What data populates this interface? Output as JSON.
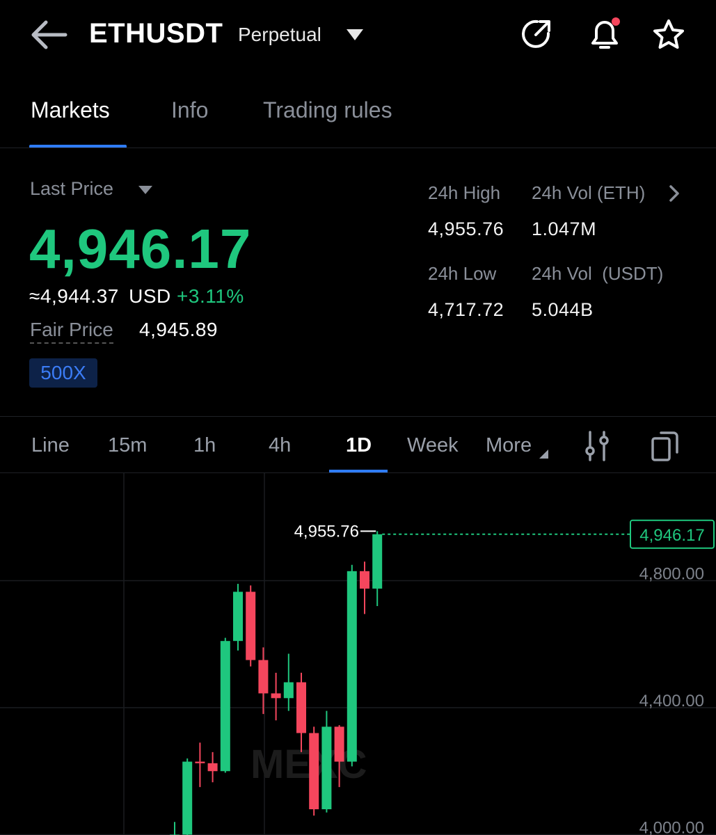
{
  "header": {
    "pair": "ETHUSDT",
    "contract_type": "Perpetual",
    "icons": [
      "back-arrow-icon",
      "chevron-down-icon",
      "share-icon",
      "bell-icon",
      "star-icon"
    ]
  },
  "tabs": [
    {
      "label": "Markets",
      "active": true
    },
    {
      "label": "Info",
      "active": false
    },
    {
      "label": "Trading rules",
      "active": false
    }
  ],
  "price": {
    "selector_label": "Last Price",
    "last_price": "4,946.17",
    "usd_equiv": "≈4,944.37",
    "usd_unit": "USD",
    "change_pct": "+3.11%",
    "fair_price_label": "Fair Price",
    "fair_price": "4,945.89",
    "leverage_badge": "500X"
  },
  "stats": {
    "high_label": "24h High",
    "high_value": "4,955.76",
    "vol_eth_label": "24h Vol (ETH)",
    "vol_eth_value": "1.047M",
    "low_label": "24h Low",
    "low_value": "4,717.72",
    "vol_usdt_label": "24h Vol  (USDT)",
    "vol_usdt_value": "5.044B"
  },
  "intervals": {
    "items": [
      "Line",
      "15m",
      "1h",
      "4h",
      "1D",
      "Week",
      "More"
    ],
    "active": "1D",
    "icons": [
      "indicator-settings-icon",
      "rotate-screen-icon"
    ]
  },
  "colors": {
    "up": "#1fc77e",
    "down": "#f5465d",
    "accent": "#2f7cf6"
  },
  "chart_data": {
    "type": "candlestick",
    "y_axis_ticks": [
      "4,800.00",
      "4,400.00",
      "4,000.00"
    ],
    "y_axis_values": [
      4800,
      4400,
      4000
    ],
    "last_price_label": "4,946.17",
    "last_price": 4946.17,
    "high_marker_label": "4,955.76",
    "high_marker": 4955.76,
    "watermark": "MEXC",
    "candles": [
      {
        "o": 3990,
        "h": 4040,
        "l": 3955,
        "c": 4000
      },
      {
        "o": 4000,
        "h": 4240,
        "l": 3990,
        "c": 4230
      },
      {
        "o": 4230,
        "h": 4290,
        "l": 4150,
        "c": 4225
      },
      {
        "o": 4225,
        "h": 4260,
        "l": 4165,
        "c": 4200
      },
      {
        "o": 4200,
        "h": 4620,
        "l": 4195,
        "c": 4610
      },
      {
        "o": 4610,
        "h": 4790,
        "l": 4580,
        "c": 4765
      },
      {
        "o": 4765,
        "h": 4785,
        "l": 4530,
        "c": 4550
      },
      {
        "o": 4550,
        "h": 4590,
        "l": 4380,
        "c": 4445
      },
      {
        "o": 4445,
        "h": 4510,
        "l": 4360,
        "c": 4430
      },
      {
        "o": 4430,
        "h": 4570,
        "l": 4390,
        "c": 4480
      },
      {
        "o": 4480,
        "h": 4510,
        "l": 4260,
        "c": 4320
      },
      {
        "o": 4320,
        "h": 4340,
        "l": 4060,
        "c": 4080
      },
      {
        "o": 4080,
        "h": 4390,
        "l": 4070,
        "c": 4340
      },
      {
        "o": 4340,
        "h": 4345,
        "l": 4150,
        "c": 4230
      },
      {
        "o": 4230,
        "h": 4850,
        "l": 4215,
        "c": 4830
      },
      {
        "o": 4830,
        "h": 4860,
        "l": 4695,
        "c": 4775
      },
      {
        "o": 4775,
        "h": 4955.76,
        "l": 4720,
        "c": 4946.17
      }
    ]
  }
}
